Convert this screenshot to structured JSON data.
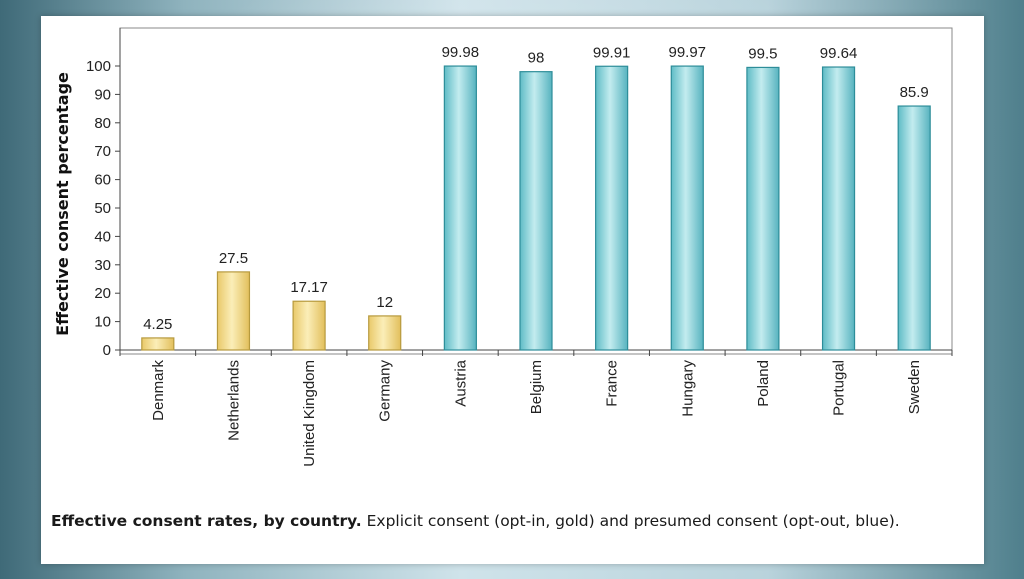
{
  "chart_data": {
    "type": "bar",
    "ylabel": "Effective consent percentage",
    "xlabel": "",
    "ylim": [
      0,
      100
    ],
    "yticks": [
      0,
      10,
      20,
      30,
      40,
      50,
      60,
      70,
      80,
      90,
      100
    ],
    "categories": [
      "Denmark",
      "Netherlands",
      "United Kingdom",
      "Germany",
      "Austria",
      "Belgium",
      "France",
      "Hungary",
      "Poland",
      "Portugal",
      "Sweden"
    ],
    "values": [
      4.25,
      27.5,
      17.17,
      12,
      99.98,
      98,
      99.91,
      99.97,
      99.5,
      99.64,
      85.9
    ],
    "value_labels": [
      "4.25",
      "27.5",
      "17.17",
      "12",
      "99.98",
      "98",
      "99.91",
      "99.97",
      "99.5",
      "99.64",
      "85.9"
    ],
    "groups": [
      "opt-in",
      "opt-in",
      "opt-in",
      "opt-in",
      "opt-out",
      "opt-out",
      "opt-out",
      "opt-out",
      "opt-out",
      "opt-out",
      "opt-out"
    ],
    "colors": {
      "opt-in": "#f3dc8e",
      "opt-out": "#7fcfd6",
      "opt-in-edge": "#b79a3e",
      "opt-out-edge": "#2d8d99"
    },
    "grid": false
  },
  "caption": {
    "title": "Effective consent rates, by country.",
    "text": " Explicit consent (opt-in, gold) and presumed consent (opt-out, blue)."
  }
}
